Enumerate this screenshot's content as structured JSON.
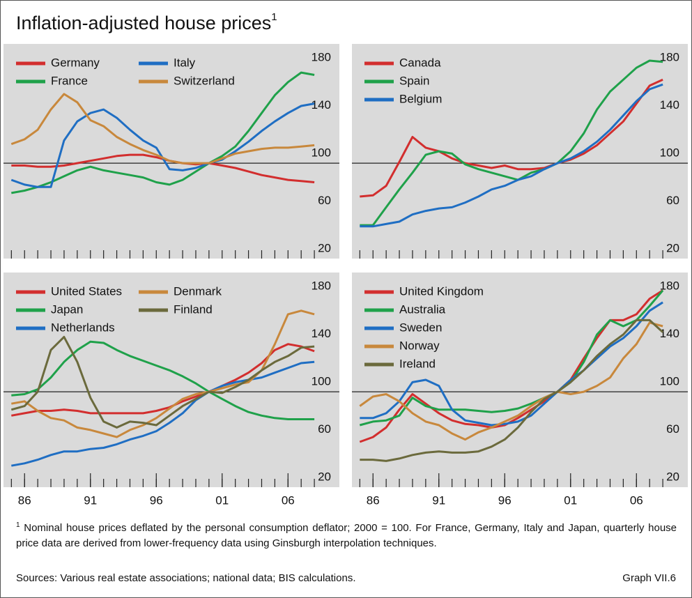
{
  "title": "Inflation-adjusted house prices",
  "title_marker": "1",
  "chart_data": [
    {
      "type": "line",
      "legend_columns": 2,
      "reference_line": 100,
      "x": [
        1985,
        1986,
        1987,
        1988,
        1989,
        1990,
        1991,
        1992,
        1993,
        1994,
        1995,
        1996,
        1997,
        1998,
        1999,
        2000,
        2001,
        2002,
        2003,
        2004,
        2005,
        2006,
        2007,
        2008
      ],
      "xlim": [
        1984.4,
        2009.9
      ],
      "ylim": [
        20,
        200
      ],
      "yticks": [
        20,
        60,
        100,
        140,
        180
      ],
      "x_minor_ticks": [
        1985,
        1986,
        1987,
        1988,
        1989,
        1990,
        1991,
        1992,
        1993,
        1994,
        1995,
        1996,
        1997,
        1998,
        1999,
        2000,
        2001,
        2002,
        2003,
        2004,
        2005,
        2006,
        2007,
        2008
      ],
      "series": [
        {
          "name": "Germany",
          "color": "#d22e2e",
          "values": [
            98,
            98,
            97,
            97,
            98,
            100,
            102,
            104,
            106,
            107,
            107,
            105,
            102,
            100,
            99,
            100,
            98,
            96,
            93,
            90,
            88,
            86,
            85,
            84
          ]
        },
        {
          "name": "France",
          "color": "#1fa14a",
          "values": [
            75,
            77,
            80,
            84,
            89,
            94,
            97,
            94,
            92,
            90,
            88,
            84,
            82,
            86,
            93,
            100,
            106,
            114,
            127,
            142,
            157,
            168,
            176,
            174
          ]
        },
        {
          "name": "Italy",
          "color": "#1f6ec3",
          "values": [
            86,
            82,
            80,
            80,
            119,
            135,
            142,
            145,
            138,
            128,
            119,
            113,
            95,
            94,
            96,
            100,
            103,
            110,
            118,
            127,
            135,
            142,
            148,
            150
          ]
        },
        {
          "name": "Switzerland",
          "color": "#c8883c",
          "values": [
            116,
            120,
            128,
            145,
            158,
            151,
            136,
            131,
            122,
            116,
            111,
            107,
            102,
            100,
            100,
            100,
            104,
            108,
            110,
            112,
            113,
            113,
            114,
            115
          ]
        }
      ]
    },
    {
      "type": "line",
      "legend_columns": 1,
      "reference_line": 100,
      "x": [
        1985,
        1986,
        1987,
        1988,
        1989,
        1990,
        1991,
        1992,
        1993,
        1994,
        1995,
        1996,
        1997,
        1998,
        1999,
        2000,
        2001,
        2002,
        2003,
        2004,
        2005,
        2006,
        2007,
        2008
      ],
      "xlim": [
        1984.4,
        2009.9
      ],
      "ylim": [
        20,
        200
      ],
      "yticks": [
        20,
        60,
        100,
        140,
        180
      ],
      "x_minor_ticks": [
        1985,
        1986,
        1987,
        1988,
        1989,
        1990,
        1991,
        1992,
        1993,
        1994,
        1995,
        1996,
        1997,
        1998,
        1999,
        2000,
        2001,
        2002,
        2003,
        2004,
        2005,
        2006,
        2007,
        2008
      ],
      "series": [
        {
          "name": "Canada",
          "color": "#d22e2e",
          "values": [
            72,
            73,
            81,
            101,
            122,
            113,
            110,
            104,
            100,
            98,
            96,
            98,
            95,
            95,
            96,
            100,
            103,
            108,
            115,
            125,
            135,
            150,
            165,
            170
          ]
        },
        {
          "name": "Spain",
          "color": "#1fa14a",
          "values": [
            48,
            48,
            63,
            78,
            92,
            107,
            110,
            108,
            99,
            95,
            92,
            89,
            86,
            92,
            95,
            100,
            110,
            125,
            145,
            160,
            170,
            180,
            186,
            185
          ]
        },
        {
          "name": "Belgium",
          "color": "#1f6ec3",
          "values": [
            47,
            47,
            49,
            51,
            57,
            60,
            62,
            63,
            67,
            72,
            78,
            81,
            86,
            89,
            95,
            100,
            104,
            110,
            118,
            128,
            140,
            152,
            162,
            166
          ]
        }
      ]
    },
    {
      "type": "line",
      "legend_columns": 2,
      "reference_line": 100,
      "x": [
        1985,
        1986,
        1987,
        1988,
        1989,
        1990,
        1991,
        1992,
        1993,
        1994,
        1995,
        1996,
        1997,
        1998,
        1999,
        2000,
        2001,
        2002,
        2003,
        2004,
        2005,
        2006,
        2007,
        2008
      ],
      "xlim": [
        1984.4,
        2009.9
      ],
      "ylim": [
        20,
        200
      ],
      "yticks": [
        20,
        60,
        100,
        140,
        180
      ],
      "x_minor_ticks": [
        1985,
        1986,
        1987,
        1988,
        1989,
        1990,
        1991,
        1992,
        1993,
        1994,
        1995,
        1996,
        1997,
        1998,
        1999,
        2000,
        2001,
        2002,
        2003,
        2004,
        2005,
        2006,
        2007,
        2008
      ],
      "xticks": [
        {
          "value": 1986,
          "label": "86"
        },
        {
          "value": 1991,
          "label": "91"
        },
        {
          "value": 1996,
          "label": "96"
        },
        {
          "value": 2001,
          "label": "01"
        },
        {
          "value": 2006,
          "label": "06"
        }
      ],
      "series": [
        {
          "name": "United States",
          "color": "#d22e2e",
          "values": [
            80,
            82,
            84,
            84,
            85,
            84,
            82,
            82,
            82,
            82,
            82,
            84,
            87,
            92,
            96,
            100,
            105,
            110,
            116,
            124,
            135,
            140,
            138,
            134
          ]
        },
        {
          "name": "Japan",
          "color": "#1fa14a",
          "values": [
            97,
            98,
            102,
            112,
            125,
            135,
            142,
            141,
            135,
            130,
            126,
            122,
            118,
            113,
            107,
            100,
            94,
            88,
            83,
            80,
            78,
            77,
            77,
            77
          ]
        },
        {
          "name": "Netherlands",
          "color": "#1f6ec3",
          "values": [
            38,
            40,
            43,
            47,
            50,
            50,
            52,
            53,
            56,
            60,
            63,
            67,
            74,
            82,
            93,
            100,
            105,
            108,
            110,
            112,
            116,
            120,
            124,
            125
          ]
        },
        {
          "name": "Denmark",
          "color": "#c8883c",
          "values": [
            90,
            92,
            84,
            78,
            76,
            70,
            68,
            65,
            62,
            68,
            72,
            78,
            86,
            94,
            98,
            100,
            103,
            106,
            108,
            118,
            140,
            165,
            168,
            165
          ]
        },
        {
          "name": "Finland",
          "color": "#6b6a3c",
          "values": [
            85,
            88,
            100,
            135,
            146,
            125,
            95,
            75,
            70,
            75,
            74,
            72,
            80,
            88,
            94,
            100,
            99,
            104,
            110,
            118,
            125,
            130,
            137,
            138
          ]
        }
      ]
    },
    {
      "type": "line",
      "legend_columns": 1,
      "reference_line": 100,
      "x": [
        1985,
        1986,
        1987,
        1988,
        1989,
        1990,
        1991,
        1992,
        1993,
        1994,
        1995,
        1996,
        1997,
        1998,
        1999,
        2000,
        2001,
        2002,
        2003,
        2004,
        2005,
        2006,
        2007,
        2008
      ],
      "xlim": [
        1984.4,
        2009.9
      ],
      "ylim": [
        20,
        200
      ],
      "yticks": [
        20,
        60,
        100,
        140,
        180
      ],
      "x_minor_ticks": [
        1985,
        1986,
        1987,
        1988,
        1989,
        1990,
        1991,
        1992,
        1993,
        1994,
        1995,
        1996,
        1997,
        1998,
        1999,
        2000,
        2001,
        2002,
        2003,
        2004,
        2005,
        2006,
        2007,
        2008
      ],
      "xticks": [
        {
          "value": 1986,
          "label": "86"
        },
        {
          "value": 1991,
          "label": "91"
        },
        {
          "value": 1996,
          "label": "96"
        },
        {
          "value": 2001,
          "label": "01"
        },
        {
          "value": 2006,
          "label": "06"
        }
      ],
      "series": [
        {
          "name": "United Kingdom",
          "color": "#d22e2e",
          "values": [
            58,
            62,
            70,
            85,
            98,
            90,
            82,
            76,
            73,
            72,
            70,
            72,
            78,
            85,
            92,
            100,
            110,
            128,
            145,
            160,
            160,
            165,
            178,
            185
          ]
        },
        {
          "name": "Australia",
          "color": "#1fa14a",
          "values": [
            72,
            75,
            76,
            80,
            95,
            88,
            85,
            85,
            85,
            84,
            83,
            84,
            86,
            90,
            95,
            100,
            108,
            125,
            148,
            160,
            155,
            160,
            172,
            185
          ]
        },
        {
          "name": "Sweden",
          "color": "#1f6ec3",
          "values": [
            78,
            78,
            82,
            92,
            108,
            110,
            105,
            85,
            76,
            74,
            72,
            73,
            75,
            80,
            90,
            100,
            110,
            118,
            128,
            138,
            145,
            155,
            168,
            175
          ]
        },
        {
          "name": "Norway",
          "color": "#c8883c",
          "values": [
            88,
            96,
            98,
            92,
            82,
            75,
            72,
            65,
            60,
            66,
            70,
            75,
            80,
            88,
            95,
            100,
            98,
            100,
            105,
            112,
            128,
            140,
            158,
            155
          ]
        },
        {
          "name": "Ireland",
          "color": "#6b6a3c",
          "values": [
            43,
            43,
            42,
            44,
            47,
            49,
            50,
            49,
            49,
            50,
            54,
            60,
            70,
            83,
            94,
            100,
            108,
            118,
            130,
            140,
            148,
            160,
            160,
            150
          ]
        }
      ]
    }
  ],
  "footnote_marker": "1",
  "footnote": "Nominal house prices deflated by the personal consumption deflator; 2000 = 100. For France, Germany, Italy and Japan, quarterly house price data are derived from lower-frequency data using Ginsburgh interpolation techniques.",
  "sources": "Sources: Various real estate associations; national data; BIS calculations.",
  "graph_label": "Graph VII.6"
}
